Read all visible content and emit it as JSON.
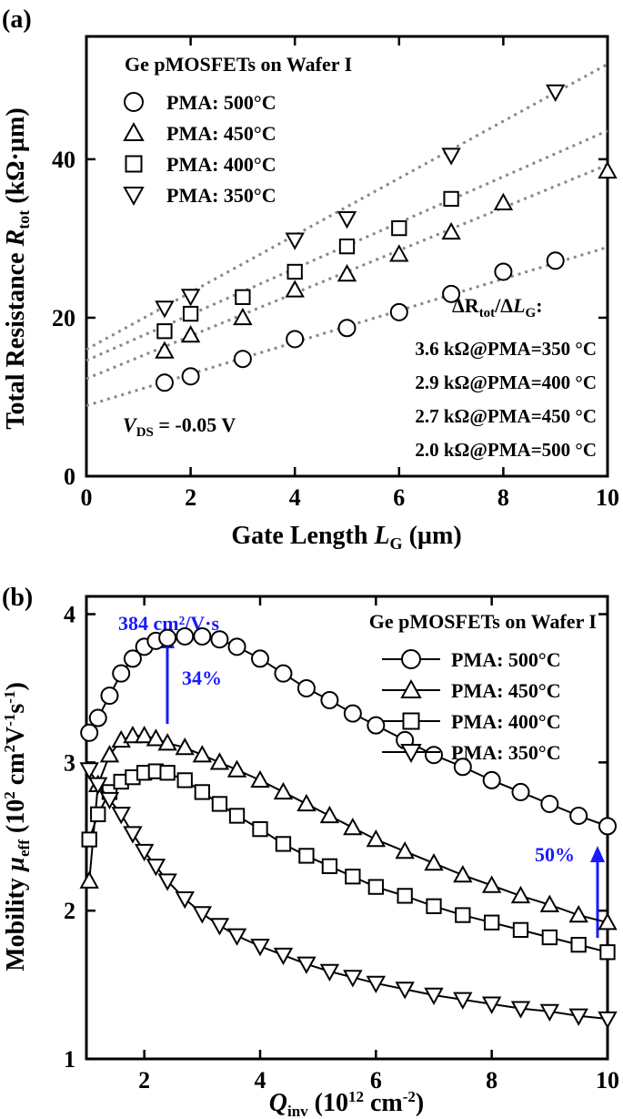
{
  "chart_data": [
    {
      "type": "scatter",
      "panel": "(a)",
      "x_label": [
        "Gate Length ",
        "L",
        "G",
        " (µm)"
      ],
      "y_label": [
        "Total Resistance ",
        "R",
        "tot",
        " (kΩ·µm)"
      ],
      "legend_title": "Ge pMOSFETs on Wafer I",
      "xlim": [
        0,
        10
      ],
      "xticks": [
        0,
        2,
        4,
        6,
        8,
        10
      ],
      "ylim": [
        0,
        55.5
      ],
      "yticks": [
        0,
        20,
        40
      ],
      "series": [
        {
          "name": "PMA: 500°C",
          "marker": "circle",
          "color": "#000000",
          "x": [
            1.5,
            2,
            3,
            4,
            5,
            6,
            7,
            8,
            9
          ],
          "values": [
            11.8,
            12.6,
            14.8,
            17.3,
            18.7,
            20.7,
            23,
            25.8,
            27.2
          ],
          "fit": {
            "intercept": 8.9,
            "slope": 2.0
          }
        },
        {
          "name": "PMA: 450°C",
          "marker": "triangle-up",
          "color": "#000000",
          "x": [
            1.5,
            2,
            3,
            4,
            5,
            6,
            7,
            8,
            10
          ],
          "values": [
            15.8,
            17.8,
            20,
            23.5,
            25.5,
            28,
            30.8,
            34.5,
            38.5
          ],
          "fit": {
            "intercept": 12.3,
            "slope": 2.7
          }
        },
        {
          "name": "PMA: 400°C",
          "marker": "square",
          "color": "#000000",
          "x": [
            1.5,
            2,
            3,
            4,
            5,
            6,
            7
          ],
          "values": [
            18.3,
            20.5,
            22.6,
            25.8,
            29,
            31.3,
            35
          ],
          "fit": {
            "intercept": 14.6,
            "slope": 2.9
          }
        },
        {
          "name": "PMA: 350°C",
          "marker": "triangle-down",
          "color": "#000000",
          "x": [
            1.5,
            2,
            4,
            5,
            7,
            9
          ],
          "values": [
            21.2,
            22.7,
            29.8,
            32.5,
            40.5,
            48.5
          ],
          "fit": {
            "intercept": 16.0,
            "slope": 3.6
          }
        }
      ],
      "slope_title": [
        "ΔR",
        "tot",
        "/Δ",
        "L",
        "G",
        ":"
      ],
      "slope_labels": [
        "3.6 kΩ@PMA=350 °C",
        "2.9 kΩ@PMA=400 °C",
        "2.7 kΩ@PMA=450 °C",
        "2.0 kΩ@PMA=500 °C"
      ],
      "vds_label": [
        "V",
        "DS",
        " = -0.05 V"
      ]
    },
    {
      "type": "line",
      "panel": "(b)",
      "x_label": [
        "Q",
        "inv",
        " (10",
        "12",
        " cm",
        "-2",
        ")"
      ],
      "y_label": [
        "Mobility ",
        "µ",
        "eff",
        " (10",
        "2",
        " cm",
        "2",
        "V",
        "-1",
        "s",
        "-1",
        ")"
      ],
      "legend_title": "Ge pMOSFETs on Wafer I",
      "xlim": [
        1,
        10
      ],
      "xticks": [
        2,
        4,
        6,
        8,
        10
      ],
      "ylim": [
        1,
        4.12
      ],
      "yticks": [
        1,
        2,
        3,
        4
      ],
      "x": [
        1.05,
        1.2,
        1.4,
        1.6,
        1.8,
        2.0,
        2.2,
        2.4,
        2.7,
        3.0,
        3.3,
        3.6,
        4.0,
        4.4,
        4.8,
        5.2,
        5.6,
        6.0,
        6.5,
        7.0,
        7.5,
        8.0,
        8.5,
        9.0,
        9.5,
        10.0
      ],
      "series": [
        {
          "name": "PMA: 500°C",
          "marker": "circle",
          "color": "#000000",
          "values": [
            3.2,
            3.3,
            3.45,
            3.6,
            3.7,
            3.78,
            3.82,
            3.84,
            3.85,
            3.85,
            3.83,
            3.78,
            3.7,
            3.6,
            3.5,
            3.42,
            3.33,
            3.25,
            3.15,
            3.05,
            2.97,
            2.88,
            2.8,
            2.72,
            2.64,
            2.57
          ]
        },
        {
          "name": "PMA: 450°C",
          "marker": "triangle-up",
          "color": "#000000",
          "values": [
            2.2,
            2.85,
            3.05,
            3.15,
            3.18,
            3.18,
            3.16,
            3.13,
            3.1,
            3.05,
            3.0,
            2.95,
            2.88,
            2.8,
            2.72,
            2.64,
            2.56,
            2.48,
            2.4,
            2.32,
            2.24,
            2.17,
            2.1,
            2.04,
            1.97,
            1.92
          ]
        },
        {
          "name": "PMA: 400°C",
          "marker": "square",
          "color": "#000000",
          "values": [
            2.48,
            2.65,
            2.8,
            2.87,
            2.9,
            2.93,
            2.94,
            2.93,
            2.88,
            2.8,
            2.72,
            2.64,
            2.55,
            2.45,
            2.37,
            2.3,
            2.23,
            2.16,
            2.1,
            2.03,
            1.97,
            1.92,
            1.87,
            1.82,
            1.77,
            1.72
          ]
        },
        {
          "name": "PMA: 350°C",
          "marker": "triangle-down",
          "color": "#000000",
          "values": [
            2.95,
            2.85,
            2.75,
            2.65,
            2.52,
            2.4,
            2.3,
            2.2,
            2.08,
            1.98,
            1.9,
            1.83,
            1.76,
            1.7,
            1.64,
            1.59,
            1.55,
            1.51,
            1.47,
            1.43,
            1.4,
            1.37,
            1.34,
            1.32,
            1.29,
            1.27
          ]
        }
      ],
      "annotations": [
        "384 cm²/V·s",
        "34%",
        "50%"
      ]
    }
  ]
}
